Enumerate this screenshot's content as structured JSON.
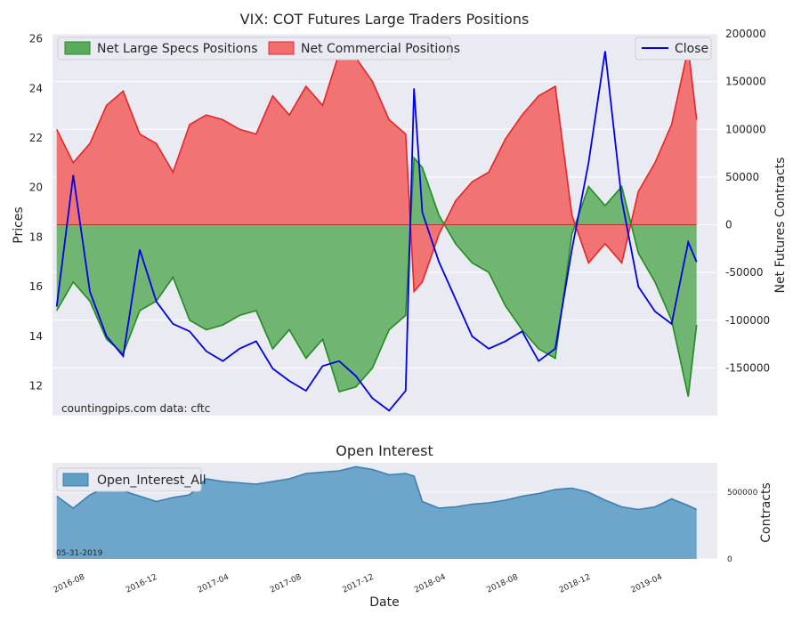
{
  "colors": {
    "plot_bg": "#eaeaf2",
    "spec_fill": "#5aab5a",
    "spec_line": "#228b22",
    "comm_fill": "#f26d6d",
    "comm_line": "#e32626",
    "close_line": "#0000e6",
    "oi_fill": "#5f9ec5",
    "oi_line": "#3b7fae"
  },
  "top": {
    "title": "VIX: COT Futures Large Traders Positions",
    "ylabel_left": "Prices",
    "ylabel_right": "Net Futures Contracts",
    "legend_left": [
      "Net Large Specs Positions",
      "Net Commercial Positions"
    ],
    "legend_right": "Close",
    "watermark": "countingpips.com     data: cftc"
  },
  "bottom": {
    "title": "Open Interest",
    "ylabel": "Contracts",
    "legend": "Open_Interest_All",
    "date_note": "05-31-2019",
    "xlabel": "Date"
  },
  "chart_data": [
    {
      "type": "area",
      "title": "VIX: COT Futures Large Traders Positions",
      "ylabel": "Net Futures Contracts",
      "ylim": [
        -200000,
        200000
      ],
      "yticks": [
        -150000,
        -100000,
        -50000,
        0,
        50000,
        100000,
        150000,
        200000
      ],
      "xlabel": "Date",
      "xticks": [
        "2016-08",
        "2016-12",
        "2017-04",
        "2017-08",
        "2017-12",
        "2018-04",
        "2018-08",
        "2018-12",
        "2019-04"
      ],
      "xlim": [
        "2016-06-07",
        "2019-07-02"
      ],
      "grid": true,
      "legend": "top-left",
      "series": [
        {
          "name": "Net Large Specs Positions",
          "x": [
            "2016-06-14",
            "2016-07-12",
            "2016-08-09",
            "2016-09-06",
            "2016-10-04",
            "2016-11-01",
            "2016-11-29",
            "2016-12-27",
            "2017-01-24",
            "2017-02-21",
            "2017-03-21",
            "2017-04-18",
            "2017-05-16",
            "2017-06-13",
            "2017-07-11",
            "2017-08-08",
            "2017-09-05",
            "2017-10-03",
            "2017-10-31",
            "2017-11-28",
            "2017-12-26",
            "2018-01-23",
            "2018-02-06",
            "2018-02-20",
            "2018-03-20",
            "2018-04-17",
            "2018-05-15",
            "2018-06-12",
            "2018-07-10",
            "2018-08-07",
            "2018-09-04",
            "2018-10-02",
            "2018-10-30",
            "2018-11-27",
            "2018-12-25",
            "2019-01-22",
            "2019-02-19",
            "2019-03-19",
            "2019-04-16",
            "2019-05-14",
            "2019-05-28"
          ],
          "values": [
            -90000,
            -60000,
            -80000,
            -120000,
            -135000,
            -90000,
            -80000,
            -55000,
            -100000,
            -110000,
            -105000,
            -95000,
            -90000,
            -130000,
            -110000,
            -140000,
            -120000,
            -175000,
            -170000,
            -150000,
            -110000,
            -95000,
            70000,
            60000,
            10000,
            -20000,
            -40000,
            -50000,
            -85000,
            -110000,
            -130000,
            -140000,
            -10000,
            40000,
            20000,
            40000,
            -30000,
            -60000,
            -100000,
            -180000,
            -105000
          ]
        },
        {
          "name": "Net Commercial Positions",
          "x": [
            "2016-06-14",
            "2016-07-12",
            "2016-08-09",
            "2016-09-06",
            "2016-10-04",
            "2016-11-01",
            "2016-11-29",
            "2016-12-27",
            "2017-01-24",
            "2017-02-21",
            "2017-03-21",
            "2017-04-18",
            "2017-05-16",
            "2017-06-13",
            "2017-07-11",
            "2017-08-08",
            "2017-09-05",
            "2017-10-03",
            "2017-10-31",
            "2017-11-28",
            "2017-12-26",
            "2018-01-23",
            "2018-02-06",
            "2018-02-20",
            "2018-03-20",
            "2018-04-17",
            "2018-05-15",
            "2018-06-12",
            "2018-07-10",
            "2018-08-07",
            "2018-09-04",
            "2018-10-02",
            "2018-10-30",
            "2018-11-27",
            "2018-12-25",
            "2019-01-22",
            "2019-02-19",
            "2019-03-19",
            "2019-04-16",
            "2019-05-14",
            "2019-05-28"
          ],
          "values": [
            100000,
            65000,
            85000,
            125000,
            140000,
            95000,
            85000,
            55000,
            105000,
            115000,
            110000,
            100000,
            95000,
            135000,
            115000,
            145000,
            125000,
            180000,
            175000,
            150000,
            110000,
            95000,
            -70000,
            -60000,
            -10000,
            25000,
            45000,
            55000,
            90000,
            115000,
            135000,
            145000,
            10000,
            -40000,
            -20000,
            -40000,
            35000,
            65000,
            105000,
            185000,
            110000
          ]
        },
        {
          "name": "Close",
          "x": [
            "2016-06-14",
            "2016-07-12",
            "2016-08-09",
            "2016-09-06",
            "2016-10-04",
            "2016-11-01",
            "2016-11-29",
            "2016-12-27",
            "2017-01-24",
            "2017-02-21",
            "2017-03-21",
            "2017-04-18",
            "2017-05-16",
            "2017-06-13",
            "2017-07-11",
            "2017-08-08",
            "2017-09-05",
            "2017-10-03",
            "2017-10-31",
            "2017-11-28",
            "2017-12-26",
            "2018-01-23",
            "2018-02-06",
            "2018-02-20",
            "2018-03-20",
            "2018-04-17",
            "2018-05-15",
            "2018-06-12",
            "2018-07-10",
            "2018-08-07",
            "2018-09-04",
            "2018-10-02",
            "2018-10-30",
            "2018-11-27",
            "2018-12-25",
            "2019-01-22",
            "2019-02-19",
            "2019-03-19",
            "2019-04-16",
            "2019-05-14",
            "2019-05-28"
          ],
          "values": [
            15.2,
            20.5,
            15.8,
            14.0,
            13.2,
            17.5,
            15.4,
            14.5,
            14.2,
            13.4,
            13.0,
            13.5,
            13.8,
            12.7,
            12.2,
            11.8,
            12.8,
            13.0,
            12.4,
            11.5,
            11.0,
            11.8,
            24.0,
            19.0,
            17.0,
            15.5,
            14.0,
            13.5,
            13.8,
            14.2,
            13.0,
            13.5,
            17.5,
            21.0,
            25.5,
            19.5,
            16.0,
            15.0,
            14.5,
            17.8,
            17.0
          ]
        }
      ],
      "y2label": "Prices",
      "y2lim": [
        10.8,
        26.2
      ],
      "y2ticks": [
        12,
        14,
        16,
        18,
        20,
        22,
        24,
        26
      ]
    },
    {
      "type": "area",
      "title": "Open Interest",
      "ylabel": "Contracts",
      "ylim": [
        0,
        720000
      ],
      "yticks": [
        0,
        500000
      ],
      "series": [
        {
          "name": "Open_Interest_All",
          "x": [
            "2016-06-14",
            "2016-07-12",
            "2016-08-09",
            "2016-09-06",
            "2016-10-04",
            "2016-11-01",
            "2016-11-29",
            "2016-12-27",
            "2017-01-24",
            "2017-02-21",
            "2017-03-21",
            "2017-04-18",
            "2017-05-16",
            "2017-06-13",
            "2017-07-11",
            "2017-08-08",
            "2017-09-05",
            "2017-10-03",
            "2017-10-31",
            "2017-11-28",
            "2017-12-26",
            "2018-01-23",
            "2018-02-06",
            "2018-02-20",
            "2018-03-20",
            "2018-04-17",
            "2018-05-15",
            "2018-06-12",
            "2018-07-10",
            "2018-08-07",
            "2018-09-04",
            "2018-10-02",
            "2018-10-30",
            "2018-11-27",
            "2018-12-25",
            "2019-01-22",
            "2019-02-19",
            "2019-03-19",
            "2019-04-16",
            "2019-05-14",
            "2019-05-28"
          ],
          "values": [
            470000,
            380000,
            480000,
            540000,
            510000,
            470000,
            430000,
            460000,
            480000,
            600000,
            580000,
            570000,
            560000,
            580000,
            600000,
            640000,
            650000,
            660000,
            690000,
            670000,
            630000,
            640000,
            620000,
            430000,
            380000,
            390000,
            410000,
            420000,
            440000,
            470000,
            490000,
            520000,
            530000,
            500000,
            440000,
            390000,
            370000,
            390000,
            450000,
            400000,
            370000
          ]
        }
      ]
    }
  ]
}
